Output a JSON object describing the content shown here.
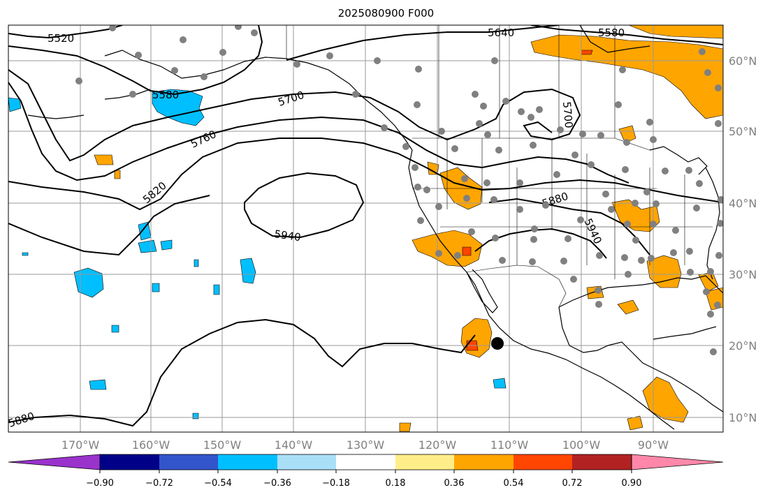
{
  "title": "2025080900 F000",
  "map": {
    "longitude_labels": [
      "170°W",
      "160°W",
      "150°W",
      "140°W",
      "130°W",
      "120°W",
      "110°W",
      "100°W",
      "90°W"
    ],
    "latitude_labels": [
      "60°N",
      "50°N",
      "40°N",
      "30°N",
      "20°N",
      "10°N"
    ],
    "contour_labels": [
      "5520",
      "5580",
      "5640",
      "5580",
      "5700",
      "5760",
      "5820",
      "5940",
      "5880",
      "5940",
      "5700",
      "5880"
    ],
    "fill_colors": {
      "neg_strong": "#00bfff",
      "neg_weak": "#aadff8",
      "pos_weak": "#ffa500",
      "pos_mid": "#ff4500",
      "pos_strong": "#b22222"
    },
    "station_marker_color": "#808080",
    "center_marker_color": "#000000"
  },
  "colorbar": {
    "colors": [
      "#9933cc",
      "#000088",
      "#3355cc",
      "#00bfff",
      "#aadff8",
      "#ffffff",
      "#ffee88",
      "#ffa500",
      "#ff4500",
      "#b22222",
      "#ff88aa"
    ],
    "tick_labels": [
      "−0.90",
      "−0.72",
      "−0.54",
      "−0.36",
      "−0.18",
      "0.18",
      "0.36",
      "0.54",
      "0.72",
      "0.90"
    ]
  }
}
